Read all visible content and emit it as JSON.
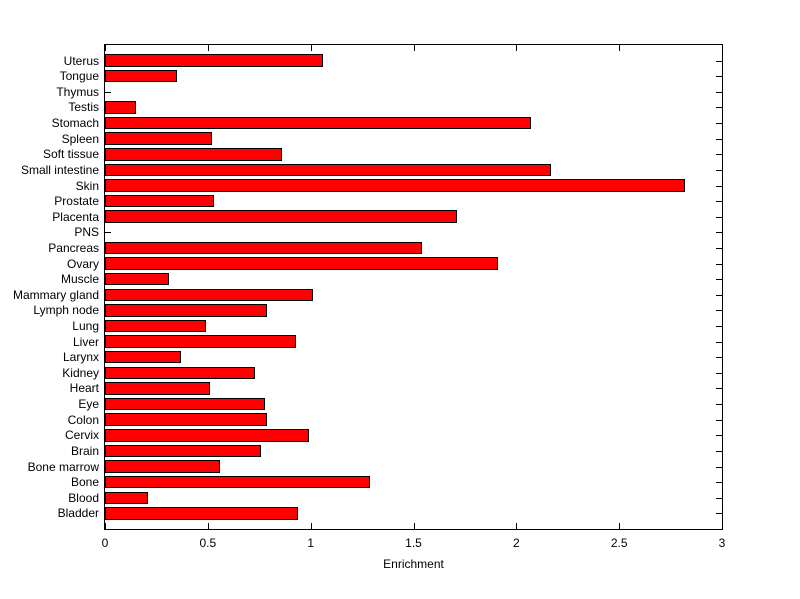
{
  "figure": {
    "background_color": "#ffffff",
    "axis_color": "#000000",
    "text_color": "#000000"
  },
  "chart_data": {
    "type": "bar",
    "orientation": "horizontal",
    "title": "",
    "xlabel": "Enrichment",
    "ylabel": "",
    "xlim": [
      0,
      3
    ],
    "xtick_labels": [
      "0",
      "0.5",
      "1",
      "1.5",
      "2",
      "2.5",
      "3"
    ],
    "xtick_values": [
      0,
      0.5,
      1,
      1.5,
      2,
      2.5,
      3
    ],
    "grid": false,
    "legend": null,
    "bar_color": "#ff0000",
    "bar_edge_color": "#000000",
    "categories": [
      "Uterus",
      "Tongue",
      "Thymus",
      "Testis",
      "Stomach",
      "Spleen",
      "Soft tissue",
      "Small intestine",
      "Skin",
      "Prostate",
      "Placenta",
      "PNS",
      "Pancreas",
      "Ovary",
      "Muscle",
      "Mammary gland",
      "Lymph node",
      "Lung",
      "Liver",
      "Larynx",
      "Kidney",
      "Heart",
      "Eye",
      "Colon",
      "Cervix",
      "Brain",
      "Bone marrow",
      "Bone",
      "Blood",
      "Bladder"
    ],
    "values": [
      1.06,
      0.35,
      0.0,
      0.15,
      2.07,
      0.52,
      0.86,
      2.17,
      2.82,
      0.53,
      1.71,
      0.0,
      1.54,
      1.91,
      0.31,
      1.01,
      0.79,
      0.49,
      0.93,
      0.37,
      0.73,
      0.51,
      0.78,
      0.79,
      0.99,
      0.76,
      0.56,
      1.29,
      0.21,
      0.94
    ]
  }
}
